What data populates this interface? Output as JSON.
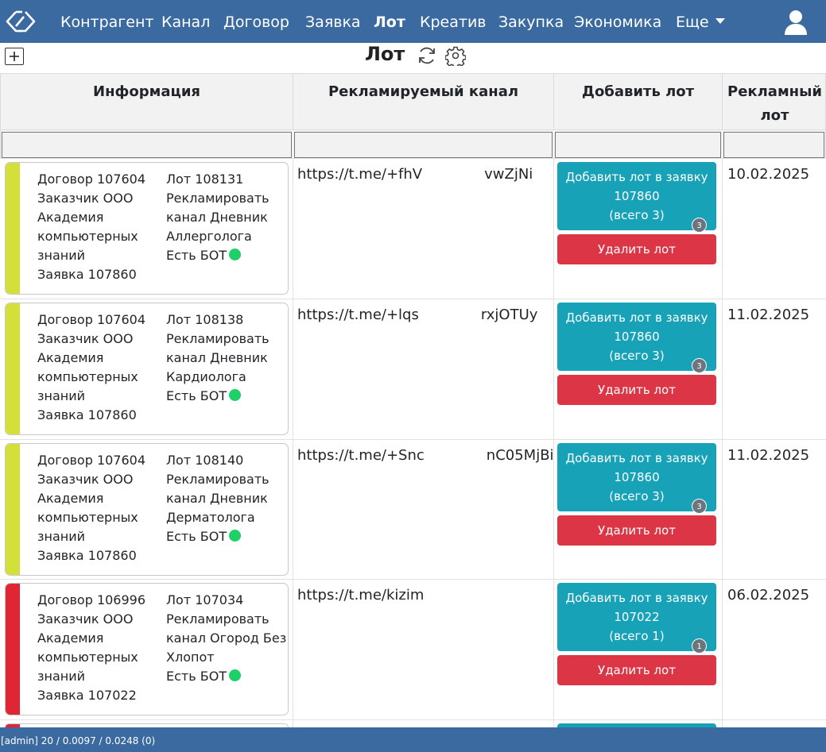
{
  "nav": {
    "items": [
      "Контрагент",
      "Канал",
      "Договор",
      "Заявка",
      "Лот",
      "Креатив",
      "Закупка",
      "Экономика",
      "Еще"
    ],
    "active": "Лот"
  },
  "page": {
    "title": "Лот"
  },
  "table": {
    "headers": [
      "Информация",
      "Рекламируемый канал",
      "Добавить лот",
      "Рекламный лот"
    ],
    "rows": [
      {
        "stripe_color": "#d4e03a",
        "info_left": [
          "Договор 107604",
          "Заказчик ООО",
          "Академия",
          "компьютерных",
          "знаний",
          "Заявка 107860"
        ],
        "info_right": [
          "Лот 108131",
          "Рекламировать",
          "канал Дневник",
          "Аллерголога",
          "Есть БОТ"
        ],
        "channel_start": "https://t.me/+fhV",
        "channel_end": "vwZjNi",
        "add_line1": "Добавить лот в заявку",
        "add_line2": "107860",
        "add_line3": "(всего 3)",
        "badge": "3",
        "delete": "Удалить лот",
        "date": "10.02.2025"
      },
      {
        "stripe_color": "#d4e03a",
        "info_left": [
          "Договор 107604",
          "Заказчик ООО",
          "Академия",
          "компьютерных",
          "знаний",
          "Заявка 107860"
        ],
        "info_right": [
          "Лот 108138",
          "Рекламировать",
          "канал Дневник",
          "Кардиолога",
          "Есть БОТ"
        ],
        "channel_start": "https://t.me/+lqs",
        "channel_end": "rxjOTUy",
        "add_line1": "Добавить лот в заявку",
        "add_line2": "107860",
        "add_line3": "(всего 3)",
        "badge": "3",
        "delete": "Удалить лот",
        "date": "11.02.2025"
      },
      {
        "stripe_color": "#d4e03a",
        "info_left": [
          "Договор 107604",
          "Заказчик ООО",
          "Академия",
          "компьютерных",
          "знаний",
          "Заявка 107860"
        ],
        "info_right": [
          "Лот 108140",
          "Рекламировать",
          "канал Дневник",
          "Дерматолога",
          "Есть БОТ"
        ],
        "channel_start": "https://t.me/+Snc",
        "channel_end": "nC05MjBi",
        "add_line1": "Добавить лот в заявку",
        "add_line2": "107860",
        "add_line3": "(всего 3)",
        "badge": "3",
        "delete": "Удалить лот",
        "date": "11.02.2025"
      },
      {
        "stripe_color": "#e02535",
        "info_left": [
          "Договор 106996",
          "Заказчик ООО",
          "Академия",
          "компьютерных",
          "знаний",
          "Заявка 107022"
        ],
        "info_right": [
          "Лот 107034",
          "Рекламировать",
          "канал Огород Без",
          "Хлопот",
          "Есть БОТ"
        ],
        "channel_start": "https://t.me/kizim",
        "channel_end": "",
        "add_line1": "Добавить лот в заявку",
        "add_line2": "107022",
        "add_line3": "(всего 1)",
        "badge": "1",
        "delete": "Удалить лот",
        "date": "06.02.2025"
      }
    ]
  },
  "footer": {
    "text": "[admin] 20 / 0.0097 / 0.0248 (0)"
  },
  "colors": {
    "navbar": "#3b6aa0",
    "info_btn": "#17a2b8",
    "danger_btn": "#dc3545",
    "bot_dot": "#1fd069"
  }
}
